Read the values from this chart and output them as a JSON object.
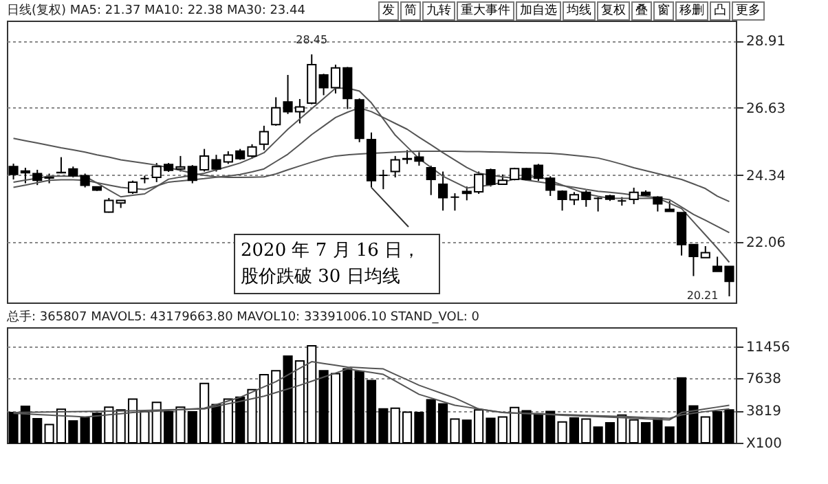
{
  "chart_data": [
    {
      "type": "candlestick",
      "title": "日线(复权)  MA5: 21.37  MA10: 22.38  MA30: 23.44",
      "categories": [
        null,
        null,
        null,
        null,
        null,
        null,
        null,
        null,
        null,
        null,
        null,
        null,
        null,
        null,
        null,
        null,
        null,
        null,
        null,
        null,
        null,
        null,
        null,
        null,
        null,
        null,
        null,
        null,
        null,
        null,
        null,
        null,
        null,
        null,
        null,
        null,
        null,
        null,
        null,
        null,
        null,
        null,
        null,
        null,
        null,
        null,
        null,
        null,
        null,
        null,
        null,
        null,
        null,
        null,
        null,
        null,
        null,
        null,
        null,
        null,
        null
      ],
      "ohlc": [
        [
          24.63,
          24.73,
          24.19,
          24.36
        ],
        [
          24.48,
          24.59,
          24.06,
          24.42
        ],
        [
          24.39,
          24.52,
          24.0,
          24.16
        ],
        [
          24.26,
          24.39,
          24.06,
          24.24
        ],
        [
          24.43,
          24.95,
          24.4,
          24.42
        ],
        [
          24.55,
          24.63,
          24.26,
          24.32
        ],
        [
          24.32,
          24.39,
          23.92,
          23.99
        ],
        [
          23.94,
          23.95,
          23.8,
          23.83
        ],
        [
          23.08,
          23.56,
          23.06,
          23.48
        ],
        [
          23.39,
          23.48,
          23.22,
          23.48
        ],
        [
          23.75,
          24.15,
          23.7,
          24.1
        ],
        [
          24.22,
          24.32,
          24.06,
          24.22
        ],
        [
          24.26,
          24.75,
          24.1,
          24.63
        ],
        [
          24.7,
          24.75,
          24.45,
          24.5
        ],
        [
          24.55,
          24.99,
          24.46,
          24.62
        ],
        [
          24.63,
          24.68,
          24.06,
          24.16
        ],
        [
          24.52,
          25.23,
          24.46,
          24.99
        ],
        [
          24.86,
          25.03,
          24.46,
          24.55
        ],
        [
          24.79,
          25.15,
          24.72,
          25.02
        ],
        [
          25.16,
          25.23,
          24.86,
          24.9
        ],
        [
          24.99,
          25.39,
          24.9,
          25.3
        ],
        [
          25.39,
          26.02,
          25.19,
          25.82
        ],
        [
          26.06,
          26.99,
          26.02,
          26.63
        ],
        [
          26.83,
          27.75,
          26.42,
          26.5
        ],
        [
          26.5,
          26.93,
          26.1,
          26.66
        ],
        [
          26.79,
          28.45,
          26.75,
          28.1
        ],
        [
          27.75,
          27.79,
          27.06,
          27.32
        ],
        [
          27.32,
          28.1,
          27.12,
          27.99
        ],
        [
          27.99,
          28.02,
          26.59,
          26.95
        ],
        [
          26.9,
          26.95,
          25.46,
          25.59
        ],
        [
          25.55,
          25.79,
          23.92,
          24.15
        ],
        [
          24.33,
          24.52,
          23.86,
          24.33
        ],
        [
          24.46,
          24.99,
          24.26,
          24.86
        ],
        [
          24.9,
          25.19,
          24.72,
          24.88
        ],
        [
          24.95,
          25.12,
          24.66,
          24.82
        ],
        [
          24.59,
          24.66,
          23.66,
          24.19
        ],
        [
          24.03,
          24.46,
          23.13,
          23.57
        ],
        [
          23.59,
          23.72,
          23.13,
          23.59
        ],
        [
          23.78,
          23.95,
          23.48,
          23.72
        ],
        [
          23.77,
          24.46,
          23.7,
          24.36
        ],
        [
          24.52,
          24.56,
          23.95,
          24.03
        ],
        [
          24.03,
          24.36,
          24.03,
          24.16
        ],
        [
          24.19,
          24.59,
          24.16,
          24.56
        ],
        [
          24.56,
          24.59,
          24.15,
          24.19
        ],
        [
          24.67,
          24.72,
          24.14,
          24.23
        ],
        [
          24.23,
          24.3,
          23.63,
          23.83
        ],
        [
          23.79,
          23.82,
          23.13,
          23.51
        ],
        [
          23.5,
          23.76,
          23.32,
          23.67
        ],
        [
          23.75,
          23.82,
          23.26,
          23.51
        ],
        [
          23.55,
          23.59,
          23.1,
          23.55
        ],
        [
          23.63,
          23.67,
          23.46,
          23.52
        ],
        [
          23.46,
          23.59,
          23.3,
          23.46
        ],
        [
          23.51,
          23.91,
          23.35,
          23.75
        ],
        [
          23.75,
          23.82,
          23.62,
          23.66
        ],
        [
          23.59,
          23.62,
          23.1,
          23.36
        ],
        [
          23.17,
          23.46,
          23.1,
          23.1
        ],
        [
          23.06,
          23.06,
          21.6,
          21.97
        ],
        [
          21.97,
          21.97,
          20.9,
          21.57
        ],
        [
          21.53,
          21.92,
          21.53,
          21.7
        ],
        [
          21.23,
          21.56,
          21.06,
          21.06
        ],
        [
          21.23,
          21.23,
          20.21,
          20.72
        ]
      ],
      "series": [
        {
          "type": "line",
          "color": "#555555",
          "values": [
            25.59,
            25.51,
            25.43,
            25.35,
            25.27,
            25.2,
            25.12,
            25.03,
            24.95,
            24.86,
            24.8,
            24.74,
            24.68,
            24.59,
            24.5,
            24.4,
            24.33,
            24.28,
            24.26,
            24.26,
            24.27,
            24.28,
            24.38,
            24.52,
            24.65,
            24.78,
            24.9,
            24.99,
            25.03,
            25.06,
            25.08,
            25.1,
            25.12,
            25.14,
            25.15,
            25.15,
            25.15,
            25.15,
            25.14,
            25.14,
            25.13,
            25.12,
            25.11,
            25.1,
            25.09,
            25.08,
            25.05,
            25.01,
            24.97,
            24.92,
            24.82,
            24.71,
            24.59,
            24.49,
            24.39,
            24.29,
            24.19,
            24.04,
            23.88,
            23.62,
            23.44
          ]
        },
        {
          "type": "line",
          "color": "#555555",
          "values": [
            23.92,
            24.0,
            24.08,
            24.16,
            24.18,
            24.18,
            24.16,
            24.08,
            24.0,
            23.92,
            23.88,
            23.85,
            23.97,
            24.1,
            24.14,
            24.18,
            24.22,
            24.27,
            24.31,
            24.36,
            24.45,
            24.55,
            24.8,
            25.05,
            25.38,
            25.72,
            26.01,
            26.3,
            26.48,
            26.63,
            26.5,
            26.3,
            26.1,
            25.9,
            25.63,
            25.37,
            25.1,
            24.85,
            24.6,
            24.4,
            24.34,
            24.28,
            24.23,
            24.17,
            24.11,
            24.05,
            23.98,
            23.92,
            23.85,
            23.79,
            23.75,
            23.71,
            23.66,
            23.62,
            23.56,
            23.5,
            23.25,
            23.0,
            22.8,
            22.59,
            22.38
          ]
        },
        {
          "type": "line",
          "color": "#555555",
          "values": [
            24.1,
            24.17,
            24.23,
            24.3,
            24.3,
            24.3,
            24.3,
            24.07,
            23.83,
            23.6,
            23.65,
            23.7,
            23.95,
            24.2,
            24.27,
            24.33,
            24.4,
            24.52,
            24.63,
            24.75,
            24.92,
            25.1,
            25.5,
            25.9,
            26.25,
            26.6,
            26.95,
            27.3,
            27.3,
            27.2,
            26.8,
            26.25,
            25.7,
            25.3,
            24.9,
            24.6,
            24.3,
            24.1,
            23.9,
            23.95,
            24.0,
            24.1,
            24.2,
            24.25,
            24.3,
            24.15,
            24.0,
            23.85,
            23.7,
            23.62,
            23.55,
            23.55,
            23.55,
            23.55,
            23.55,
            23.38,
            23.2,
            22.75,
            22.3,
            21.85,
            21.37
          ]
        }
      ],
      "ylim": [
        20.0,
        29.6
      ],
      "yticks": [
        22.06,
        24.34,
        26.63,
        28.91
      ],
      "grid": "y",
      "tick_labels": "y",
      "annotations": [
        "2020 年 7 月 16 日，股价跌破 30 日均线",
        {
          "text": "28.45",
          "y": 28.45
        },
        "20.21",
        "发",
        "简",
        "九转",
        "重大事件",
        "加自选",
        "均线",
        "复权",
        "叠",
        "窗",
        "移删",
        "凸",
        "更多"
      ]
    },
    {
      "type": "bar",
      "title": "总手: 365807  MAVOL5: 43179663.80  MAVOL10: 33391006.10  STAND_VOL: 0",
      "categories": [
        null,
        null,
        null,
        null,
        null,
        null,
        null,
        null,
        null,
        null,
        null,
        null,
        null,
        null,
        null,
        null,
        null,
        null,
        null,
        null,
        null,
        null,
        null,
        null,
        null,
        null,
        null,
        null,
        null,
        null,
        null,
        null,
        null,
        null,
        null,
        null,
        null,
        null,
        null,
        null,
        null,
        null,
        null,
        null,
        null,
        null,
        null,
        null,
        null,
        null,
        null,
        null,
        null,
        null,
        null,
        null,
        null,
        null,
        null,
        null,
        null
      ],
      "series": [
        {
          "type": "bar",
          "values": [
            3581,
            4315,
            2848,
            2158,
            3970,
            2589,
            2934,
            3495,
            4229,
            3884,
            5178,
            3668,
            4790,
            3668,
            4229,
            3668,
            7033,
            4531,
            5178,
            5394,
            6300,
            8069,
            8544,
            10270,
            9709,
            11500,
            8544,
            8199,
            8760,
            8457,
            7379,
            4013,
            4099,
            3625,
            3581,
            5092,
            4617,
            2805,
            2675,
            3884,
            2891,
            3064,
            4186,
            3797,
            3452,
            3711,
            2460,
            2934,
            2805,
            1863,
            2373,
            3279,
            2719,
            2373,
            2805,
            1863,
            7680,
            4358,
            3064,
            3668,
            3884
          ],
          "colors": [
            "#000000",
            "#000000",
            "#000000",
            "#ffffff",
            "#ffffff",
            "#000000",
            "#000000",
            "#000000",
            "#ffffff",
            "#ffffff",
            "#ffffff",
            "#ffffff",
            "#ffffff",
            "#000000",
            "#ffffff",
            "#000000",
            "#ffffff",
            "#000000",
            "#ffffff",
            "#000000",
            "#ffffff",
            "#ffffff",
            "#ffffff",
            "#000000",
            "#ffffff",
            "#ffffff",
            "#000000",
            "#ffffff",
            "#000000",
            "#000000",
            "#000000",
            "#000000",
            "#ffffff",
            "#ffffff",
            "#000000",
            "#000000",
            "#000000",
            "#ffffff",
            "#000000",
            "#ffffff",
            "#000000",
            "#ffffff",
            "#ffffff",
            "#000000",
            "#000000",
            "#000000",
            "#ffffff",
            "#000000",
            "#ffffff",
            "#000000",
            "#000000",
            "#ffffff",
            "#ffffff",
            "#000000",
            "#000000",
            "#000000",
            "#000000",
            "#000000",
            "#ffffff",
            "#000000",
            "#000000"
          ]
        },
        {
          "type": "line",
          "color": "#555555",
          "values": [
            3495,
            3420,
            3350,
            3280,
            3210,
            3140,
            3064,
            3190,
            3320,
            3450,
            3581,
            3670,
            3750,
            3840,
            3930,
            4010,
            4099,
            4530,
            4960,
            5394,
            6010,
            6630,
            7249,
            8040,
            8830,
            9622,
            9400,
            9190,
            8975,
            8900,
            8830,
            8760,
            8110,
            7470,
            6818,
            6310,
            5810,
            5307,
            4660,
            4013,
            3800,
            3581,
            3520,
            3460,
            3400,
            3340,
            3270,
            3210,
            3150,
            3090,
            3030,
            2970,
            2910,
            2840,
            2780,
            2719,
            3581,
            3800,
            4010,
            4230,
            4444
          ]
        },
        {
          "type": "line",
          "color": "#555555",
          "values": [
            3581,
            3600,
            3625,
            3645,
            3670,
            3690,
            3710,
            3730,
            3755,
            3775,
            3797,
            3830,
            3870,
            3905,
            3940,
            3980,
            4013,
            4315,
            4620,
            4920,
            5220,
            5523,
            5955,
            6385,
            6818,
            7300,
            7790,
            8270,
            8760,
            8540,
            8330,
            8112,
            7320,
            6530,
            5739,
            5310,
            4870,
            4444,
            4230,
            4010,
            3800,
            3581,
            3535,
            3490,
            3440,
            3390,
            3345,
            3300,
            3250,
            3205,
            3160,
            3110,
            3064,
            3000,
            2950,
            2900,
            3300,
            3500,
            3700,
            3850,
            4013
          ]
        }
      ],
      "ylim": [
        0,
        13700
      ],
      "yticks": [
        {
          "value": 0,
          "label": "X100"
        },
        3819,
        7638,
        11456
      ],
      "grid": "y",
      "tick_labels": "y"
    }
  ]
}
